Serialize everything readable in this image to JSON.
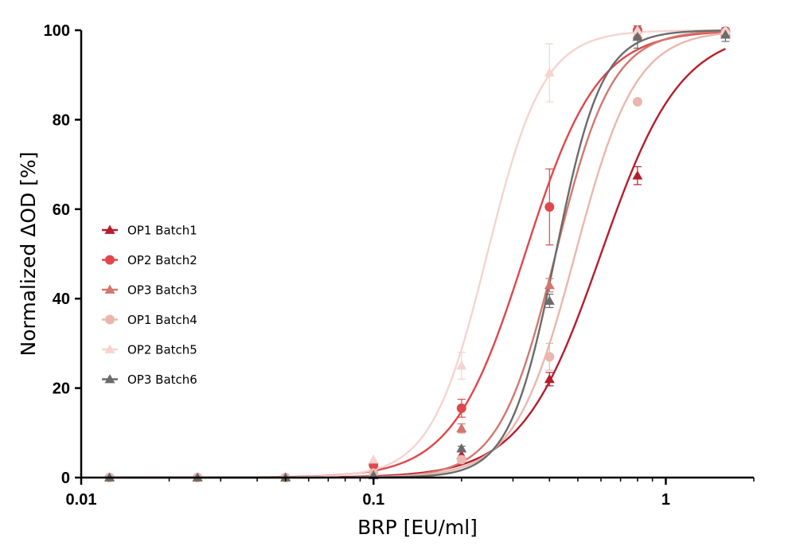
{
  "chart_data": {
    "type": "line",
    "xlabel": "BRP [EU/ml]",
    "ylabel": "Normalized ΔOD [%]",
    "xscale": "log",
    "xlim": [
      0.01,
      2.0
    ],
    "ylim": [
      0,
      100
    ],
    "x_ticks": [
      {
        "value": 0.01,
        "label": "0.01"
      },
      {
        "value": 0.1,
        "label": "0.1"
      },
      {
        "value": 1,
        "label": "1"
      }
    ],
    "y_ticks": [
      {
        "value": 0,
        "label": "0"
      },
      {
        "value": 20,
        "label": "20"
      },
      {
        "value": 40,
        "label": "40"
      },
      {
        "value": 60,
        "label": "60"
      },
      {
        "value": 80,
        "label": "80"
      },
      {
        "value": 100,
        "label": "100"
      }
    ],
    "grid": false,
    "legend_position": "left",
    "x": [
      0.0125,
      0.025,
      0.05,
      0.1,
      0.2,
      0.4,
      0.8,
      1.6
    ],
    "series": [
      {
        "name": "OP1 Batch1",
        "marker": "triangle",
        "color": "#b71c2c",
        "values": [
          0,
          0,
          0,
          0.8,
          5,
          22,
          67.5,
          99.5
        ],
        "errors": [
          0,
          0,
          0,
          0,
          1,
          1.5,
          2,
          0.5
        ],
        "fit": {
          "ec50": 0.6,
          "hill": 3.2
        }
      },
      {
        "name": "OP2 Batch2",
        "marker": "circle",
        "color": "#e0474c",
        "values": [
          0,
          0,
          0,
          2.8,
          15.5,
          60.5,
          100,
          99.8
        ],
        "errors": [
          0,
          0,
          0,
          0.5,
          2,
          8.5,
          0,
          0
        ],
        "fit": {
          "ec50": 0.33,
          "hill": 3.5
        }
      },
      {
        "name": "OP3 Batch3",
        "marker": "triangle",
        "color": "#d2776e",
        "values": [
          0,
          0,
          0,
          1.0,
          11,
          43,
          99,
          99.5
        ],
        "errors": [
          0,
          0,
          0,
          0,
          1,
          1.5,
          0,
          0
        ],
        "fit": {
          "ec50": 0.42,
          "hill": 4.5
        }
      },
      {
        "name": "OP1 Batch4",
        "marker": "circle",
        "color": "#e9b7ad",
        "values": [
          0,
          0,
          0,
          1.0,
          4,
          27,
          84,
          99.5
        ],
        "errors": [
          0,
          0,
          0,
          0,
          0.5,
          3,
          0,
          0
        ],
        "fit": {
          "ec50": 0.49,
          "hill": 4.2
        }
      },
      {
        "name": "OP2 Batch5",
        "marker": "triangle",
        "color": "#f5d4cf",
        "values": [
          0,
          0,
          0,
          4.0,
          25,
          90.5,
          100,
          100
        ],
        "errors": [
          0,
          0,
          0,
          0,
          3,
          6.5,
          0,
          0
        ],
        "fit": {
          "ec50": 0.245,
          "hill": 4.5
        }
      },
      {
        "name": "OP3 Batch6",
        "marker": "triangle",
        "color": "#6b6b6b",
        "values": [
          0,
          0,
          0,
          0.5,
          6.5,
          39.5,
          98.5,
          99
        ],
        "errors": [
          0,
          0,
          0,
          0,
          0.5,
          1.5,
          2.5,
          1.5
        ],
        "fit": {
          "ec50": 0.42,
          "hill": 5.5
        }
      }
    ]
  }
}
